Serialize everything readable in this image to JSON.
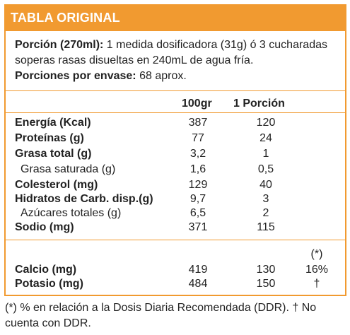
{
  "header": {
    "title": "TABLA ORIGINAL"
  },
  "serving": {
    "portion_label": "Porción (270ml):",
    "portion_text": " 1 medida dosificadora (31g) ó 3 cucharadas soperas rasas disueltas en 240mL de agua fría.",
    "servings_label": "Porciones por envase:",
    "servings_text": " 68 aprox."
  },
  "columns": {
    "per100": "100gr",
    "per_portion": "1 Porción",
    "ddr_marker": "(*)"
  },
  "rows": [
    {
      "label": "Energía (Kcal)",
      "v100": "387",
      "vporc": "120"
    },
    {
      "label": "Proteínas (g)",
      "v100": "77",
      "vporc": "24"
    },
    {
      "label": "Grasa total (g)",
      "v100": "3,2",
      "vporc": "1"
    },
    {
      "label": "Grasa saturada (g)",
      "v100": "1,6",
      "vporc": "0,5"
    },
    {
      "label": "Colesterol (mg)",
      "v100": "129",
      "vporc": "40"
    },
    {
      "label": "Hidratos de Carb. disp.(g)",
      "v100": "9,7",
      "vporc": "3"
    },
    {
      "label": "Azúcares totales (g)",
      "v100": "6,5",
      "vporc": "2"
    },
    {
      "label": "Sodio (mg)",
      "v100": "371",
      "vporc": "115"
    },
    {
      "label": "Calcio (mg)",
      "v100": "419",
      "vporc": "130",
      "ddr": "16%"
    },
    {
      "label": "Potasio (mg)",
      "v100": "484",
      "vporc": "150",
      "ddr": "†"
    }
  ],
  "footnote": "(*) % en relación a la Dosis Diaria Recomendada (DDR). † No cuenta con DDR."
}
